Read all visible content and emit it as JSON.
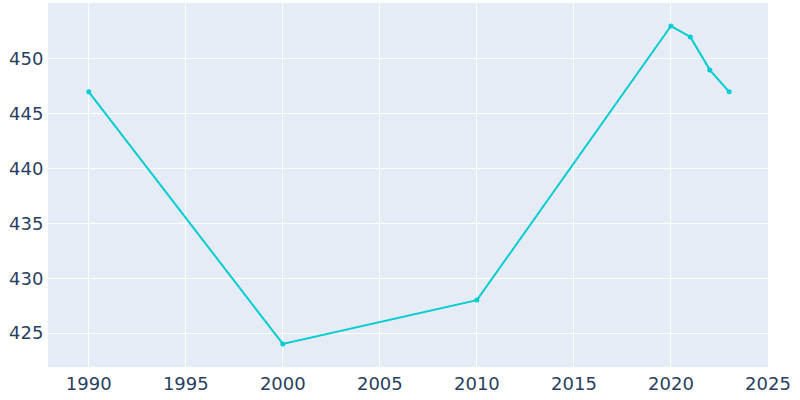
{
  "chart_data": {
    "type": "line",
    "x": [
      1990,
      2000,
      2010,
      2020,
      2021,
      2022,
      2023
    ],
    "values": [
      447,
      424,
      428,
      453,
      452,
      449,
      447
    ],
    "color": "#00cdd0",
    "marker": "circle",
    "xlim": [
      1987.9,
      2025
    ],
    "xticks": [
      1990,
      1995,
      2000,
      2005,
      2010,
      2015,
      2020,
      2025
    ],
    "ylim": [
      421.9,
      455.1
    ],
    "yticks": [
      425,
      430,
      435,
      440,
      445,
      450
    ],
    "grid": true
  }
}
